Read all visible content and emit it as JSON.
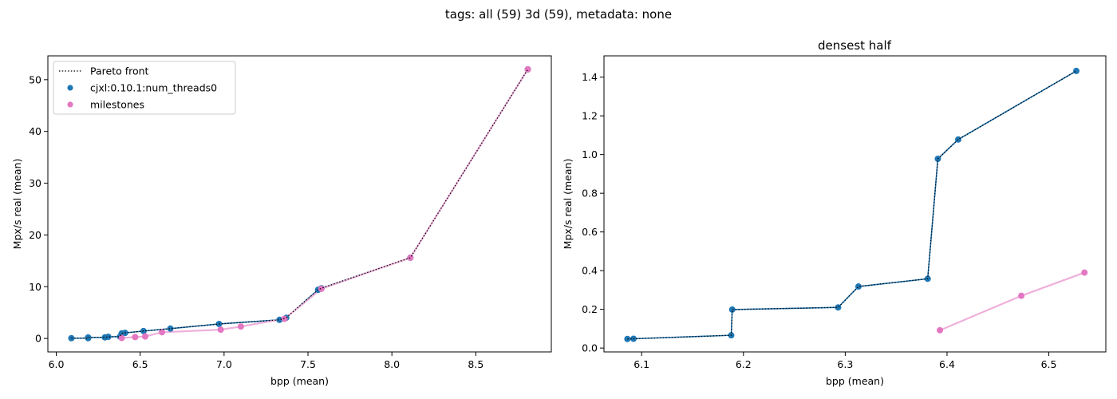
{
  "figure": {
    "suptitle": "tags: all (59) 3d (59), metadata: none"
  },
  "colors": {
    "cjxl": "#1f77b4",
    "milestones": "#e377c2",
    "milestones_line": "#efb0db",
    "front": "#000000",
    "frame": "#000000"
  },
  "chart_data": [
    {
      "type": "scatter",
      "title": "",
      "xlabel": "bpp (mean)",
      "ylabel": "Mpx/s real (mean)",
      "xlim": [
        5.95,
        8.95
      ],
      "ylim": [
        -2.6,
        54.6
      ],
      "xticks": [
        6.0,
        6.5,
        7.0,
        7.5,
        8.0,
        8.5
      ],
      "xtick_labels": [
        "6.0",
        "6.5",
        "7.0",
        "7.5",
        "8.0",
        "8.5"
      ],
      "yticks": [
        0,
        10,
        20,
        30,
        40,
        50
      ],
      "ytick_labels": [
        "0",
        "10",
        "20",
        "30",
        "40",
        "50"
      ],
      "grid": false,
      "legend": {
        "position": "upper-left",
        "entries": [
          {
            "label": "Pareto front",
            "kind": "dotted-line"
          },
          {
            "label": "cjxl:0.10.1:num_threads0",
            "kind": "marker",
            "series": "cjxl"
          },
          {
            "label": "milestones",
            "kind": "marker",
            "series": "milestones"
          }
        ]
      },
      "series": [
        {
          "name": "cjxl:0.10.1:num_threads0",
          "key": "cjxl",
          "points": [
            [
              6.09,
              0.05
            ],
            [
              6.19,
              0.06
            ],
            [
              6.19,
              0.2
            ],
            [
              6.29,
              0.21
            ],
            [
              6.31,
              0.32
            ],
            [
              6.38,
              0.36
            ],
            [
              6.39,
              0.98
            ],
            [
              6.41,
              1.08
            ],
            [
              6.52,
              1.43
            ],
            [
              6.68,
              1.9
            ],
            [
              6.97,
              2.8
            ],
            [
              7.33,
              3.6
            ],
            [
              7.37,
              4.0
            ],
            [
              7.56,
              9.4
            ],
            [
              7.58,
              9.7
            ],
            [
              8.11,
              15.6
            ],
            [
              8.81,
              52.0
            ]
          ],
          "connected": true
        },
        {
          "name": "milestones",
          "key": "milestones",
          "points": [
            [
              6.39,
              0.09
            ],
            [
              6.47,
              0.27
            ],
            [
              6.53,
              0.39
            ],
            [
              6.63,
              1.2
            ],
            [
              6.98,
              1.7
            ],
            [
              7.1,
              2.3
            ],
            [
              7.36,
              3.8
            ],
            [
              7.58,
              9.6
            ],
            [
              8.11,
              15.6
            ],
            [
              8.81,
              52.0
            ]
          ],
          "connected": true
        }
      ],
      "pareto_front": [
        [
          6.09,
          0.05
        ],
        [
          6.19,
          0.06
        ],
        [
          6.19,
          0.2
        ],
        [
          6.29,
          0.21
        ],
        [
          6.31,
          0.32
        ],
        [
          6.38,
          0.36
        ],
        [
          6.39,
          0.98
        ],
        [
          6.41,
          1.08
        ],
        [
          6.52,
          1.43
        ],
        [
          6.68,
          1.9
        ],
        [
          6.97,
          2.8
        ],
        [
          7.33,
          3.6
        ],
        [
          7.37,
          4.0
        ],
        [
          7.56,
          9.4
        ],
        [
          7.58,
          9.7
        ],
        [
          8.11,
          15.6
        ],
        [
          8.81,
          52.0
        ]
      ]
    },
    {
      "type": "scatter",
      "title": "densest half",
      "xlabel": "bpp (mean)",
      "ylabel": "Mpx/s real (mean)",
      "xlim": [
        6.063,
        6.556
      ],
      "ylim": [
        -0.02,
        1.51
      ],
      "xticks": [
        6.1,
        6.2,
        6.3,
        6.4,
        6.5
      ],
      "xtick_labels": [
        "6.1",
        "6.2",
        "6.3",
        "6.4",
        "6.5"
      ],
      "yticks": [
        0.0,
        0.2,
        0.4,
        0.6,
        0.8,
        1.0,
        1.2,
        1.4
      ],
      "ytick_labels": [
        "0.0",
        "0.2",
        "0.4",
        "0.6",
        "0.8",
        "1.0",
        "1.2",
        "1.4"
      ],
      "grid": false,
      "series": [
        {
          "name": "cjxl:0.10.1:num_threads0",
          "key": "cjxl",
          "points": [
            [
              6.086,
              0.047
            ],
            [
              6.092,
              0.048
            ],
            [
              6.188,
              0.066
            ],
            [
              6.189,
              0.199
            ],
            [
              6.293,
              0.21
            ],
            [
              6.313,
              0.318
            ],
            [
              6.381,
              0.358
            ],
            [
              6.391,
              0.978
            ],
            [
              6.411,
              1.078
            ],
            [
              6.527,
              1.432
            ]
          ],
          "connected": true
        },
        {
          "name": "milestones",
          "key": "milestones",
          "points": [
            [
              6.393,
              0.092
            ],
            [
              6.473,
              0.27
            ],
            [
              6.535,
              0.39
            ]
          ],
          "connected": true
        }
      ],
      "pareto_front": [
        [
          6.086,
          0.047
        ],
        [
          6.092,
          0.048
        ],
        [
          6.188,
          0.066
        ],
        [
          6.189,
          0.199
        ],
        [
          6.293,
          0.21
        ],
        [
          6.313,
          0.318
        ],
        [
          6.381,
          0.358
        ],
        [
          6.391,
          0.978
        ],
        [
          6.411,
          1.078
        ],
        [
          6.527,
          1.432
        ]
      ]
    }
  ]
}
